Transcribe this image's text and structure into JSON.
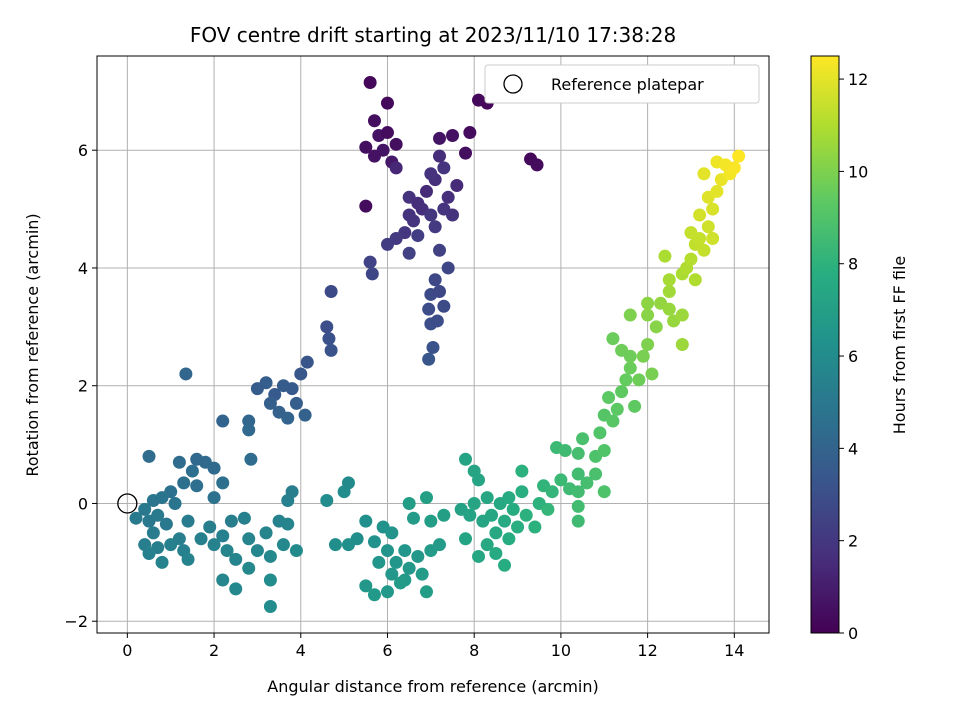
{
  "chart_data": {
    "type": "scatter",
    "title": "FOV centre drift starting at 2023/11/10 17:38:28",
    "xlabel": "Angular distance from reference (arcmin)",
    "ylabel": "Rotation from reference (arcmin)",
    "xlim": [
      -0.7,
      14.8
    ],
    "ylim": [
      -2.2,
      7.6
    ],
    "xticks": [
      0,
      2,
      4,
      6,
      8,
      10,
      12,
      14
    ],
    "yticks": [
      -2,
      0,
      2,
      4,
      6
    ],
    "grid": true,
    "legend": {
      "placement": "top-right",
      "entries": [
        "Reference platepar"
      ]
    },
    "reference_point": {
      "x": 0,
      "y": 0,
      "label": "Reference platepar"
    },
    "colorbar": {
      "label": "Hours from first FF file",
      "range": [
        0,
        12.5
      ],
      "ticks": [
        0,
        2,
        4,
        6,
        8,
        10,
        12
      ],
      "colormap": "viridis"
    },
    "points": [
      {
        "x": 5.6,
        "y": 7.15,
        "t": 0.2
      },
      {
        "x": 6.0,
        "y": 6.8,
        "t": 0.3
      },
      {
        "x": 5.7,
        "y": 6.5,
        "t": 0.5
      },
      {
        "x": 5.8,
        "y": 6.25,
        "t": 0.6
      },
      {
        "x": 6.0,
        "y": 6.3,
        "t": 0.4
      },
      {
        "x": 5.5,
        "y": 6.05,
        "t": 0.5
      },
      {
        "x": 5.9,
        "y": 6.0,
        "t": 0.7
      },
      {
        "x": 6.1,
        "y": 5.8,
        "t": 0.8
      },
      {
        "x": 5.7,
        "y": 5.9,
        "t": 0.6
      },
      {
        "x": 6.2,
        "y": 6.1,
        "t": 0.5
      },
      {
        "x": 8.1,
        "y": 6.85,
        "t": 0.3
      },
      {
        "x": 8.3,
        "y": 6.8,
        "t": 0.2
      },
      {
        "x": 9.3,
        "y": 5.85,
        "t": 0.3
      },
      {
        "x": 9.45,
        "y": 5.75,
        "t": 0.4
      },
      {
        "x": 7.9,
        "y": 6.3,
        "t": 0.4
      },
      {
        "x": 7.5,
        "y": 6.25,
        "t": 0.6
      },
      {
        "x": 7.2,
        "y": 6.2,
        "t": 0.7
      },
      {
        "x": 7.8,
        "y": 5.95,
        "t": 0.5
      },
      {
        "x": 5.5,
        "y": 5.05,
        "t": 0.4
      },
      {
        "x": 6.2,
        "y": 5.7,
        "t": 1.4
      },
      {
        "x": 6.5,
        "y": 5.2,
        "t": 1.8
      },
      {
        "x": 6.7,
        "y": 5.1,
        "t": 1.6
      },
      {
        "x": 6.9,
        "y": 5.3,
        "t": 1.5
      },
      {
        "x": 7.1,
        "y": 5.5,
        "t": 1.7
      },
      {
        "x": 7.3,
        "y": 5.7,
        "t": 1.9
      },
      {
        "x": 7.2,
        "y": 5.9,
        "t": 1.6
      },
      {
        "x": 7.0,
        "y": 5.6,
        "t": 1.8
      },
      {
        "x": 6.8,
        "y": 5.0,
        "t": 1.7
      },
      {
        "x": 6.6,
        "y": 4.8,
        "t": 1.9
      },
      {
        "x": 6.4,
        "y": 4.6,
        "t": 2.0
      },
      {
        "x": 6.2,
        "y": 4.5,
        "t": 2.1
      },
      {
        "x": 6.0,
        "y": 4.4,
        "t": 2.2
      },
      {
        "x": 6.5,
        "y": 4.9,
        "t": 1.8
      },
      {
        "x": 7.4,
        "y": 5.2,
        "t": 1.7
      },
      {
        "x": 7.6,
        "y": 5.4,
        "t": 1.5
      },
      {
        "x": 7.3,
        "y": 5.0,
        "t": 1.9
      },
      {
        "x": 7.0,
        "y": 4.9,
        "t": 2.0
      },
      {
        "x": 7.1,
        "y": 4.7,
        "t": 2.1
      },
      {
        "x": 7.5,
        "y": 4.9,
        "t": 1.8
      },
      {
        "x": 6.7,
        "y": 4.55,
        "t": 2.3
      },
      {
        "x": 5.6,
        "y": 4.1,
        "t": 2.5
      },
      {
        "x": 5.65,
        "y": 3.9,
        "t": 2.6
      },
      {
        "x": 7.2,
        "y": 4.3,
        "t": 2.4
      },
      {
        "x": 7.4,
        "y": 4.0,
        "t": 2.6
      },
      {
        "x": 7.1,
        "y": 3.8,
        "t": 2.7
      },
      {
        "x": 7.0,
        "y": 3.55,
        "t": 2.8
      },
      {
        "x": 6.95,
        "y": 3.3,
        "t": 2.9
      },
      {
        "x": 7.3,
        "y": 3.35,
        "t": 2.8
      },
      {
        "x": 7.0,
        "y": 3.05,
        "t": 3.0
      },
      {
        "x": 7.15,
        "y": 3.1,
        "t": 2.9
      },
      {
        "x": 7.05,
        "y": 2.65,
        "t": 3.2
      },
      {
        "x": 6.95,
        "y": 2.45,
        "t": 3.3
      },
      {
        "x": 6.5,
        "y": 4.25,
        "t": 2.4
      },
      {
        "x": 7.2,
        "y": 3.6,
        "t": 2.7
      },
      {
        "x": 4.7,
        "y": 3.6,
        "t": 2.8
      },
      {
        "x": 4.6,
        "y": 3.0,
        "t": 3.0
      },
      {
        "x": 4.65,
        "y": 2.8,
        "t": 3.1
      },
      {
        "x": 4.7,
        "y": 2.6,
        "t": 3.2
      },
      {
        "x": 4.15,
        "y": 2.4,
        "t": 3.3
      },
      {
        "x": 4.0,
        "y": 2.2,
        "t": 3.4
      },
      {
        "x": 3.8,
        "y": 1.95,
        "t": 3.5
      },
      {
        "x": 3.6,
        "y": 2.0,
        "t": 3.6
      },
      {
        "x": 3.4,
        "y": 1.85,
        "t": 3.5
      },
      {
        "x": 3.2,
        "y": 2.05,
        "t": 3.7
      },
      {
        "x": 3.0,
        "y": 1.95,
        "t": 3.6
      },
      {
        "x": 3.3,
        "y": 1.7,
        "t": 3.8
      },
      {
        "x": 3.5,
        "y": 1.55,
        "t": 3.9
      },
      {
        "x": 3.9,
        "y": 1.7,
        "t": 3.7
      },
      {
        "x": 4.1,
        "y": 1.5,
        "t": 3.9
      },
      {
        "x": 3.7,
        "y": 1.45,
        "t": 4.0
      },
      {
        "x": 2.8,
        "y": 1.4,
        "t": 4.1
      },
      {
        "x": 2.8,
        "y": 1.25,
        "t": 4.2
      },
      {
        "x": 2.2,
        "y": 1.4,
        "t": 4.0
      },
      {
        "x": 1.35,
        "y": 2.2,
        "t": 4.1
      },
      {
        "x": 2.85,
        "y": 0.75,
        "t": 4.4
      },
      {
        "x": 1.8,
        "y": 0.7,
        "t": 4.3
      },
      {
        "x": 1.6,
        "y": 0.75,
        "t": 4.2
      },
      {
        "x": 1.2,
        "y": 0.7,
        "t": 4.4
      },
      {
        "x": 1.5,
        "y": 0.55,
        "t": 4.5
      },
      {
        "x": 2.0,
        "y": 0.6,
        "t": 4.3
      },
      {
        "x": 1.3,
        "y": 0.35,
        "t": 4.6
      },
      {
        "x": 1.6,
        "y": 0.3,
        "t": 4.5
      },
      {
        "x": 1.0,
        "y": 0.2,
        "t": 4.7
      },
      {
        "x": 0.5,
        "y": 0.8,
        "t": 4.4
      },
      {
        "x": 2.2,
        "y": 0.35,
        "t": 4.6
      },
      {
        "x": 2.0,
        "y": 0.1,
        "t": 4.7
      },
      {
        "x": 1.1,
        "y": 0.0,
        "t": 4.8
      },
      {
        "x": 0.6,
        "y": 0.05,
        "t": 4.9
      },
      {
        "x": 0.8,
        "y": 0.1,
        "t": 4.8
      },
      {
        "x": 0.4,
        "y": -0.1,
        "t": 5.0
      },
      {
        "x": 0.2,
        "y": -0.25,
        "t": 5.1
      },
      {
        "x": 0.5,
        "y": -0.3,
        "t": 5.0
      },
      {
        "x": 0.7,
        "y": -0.2,
        "t": 5.1
      },
      {
        "x": 0.9,
        "y": -0.35,
        "t": 5.0
      },
      {
        "x": 0.6,
        "y": -0.5,
        "t": 5.2
      },
      {
        "x": 0.4,
        "y": -0.7,
        "t": 5.3
      },
      {
        "x": 0.7,
        "y": -0.75,
        "t": 5.3
      },
      {
        "x": 0.5,
        "y": -0.85,
        "t": 5.4
      },
      {
        "x": 0.8,
        "y": -1.0,
        "t": 5.5
      },
      {
        "x": 1.0,
        "y": -0.7,
        "t": 5.4
      },
      {
        "x": 1.2,
        "y": -0.6,
        "t": 5.3
      },
      {
        "x": 1.3,
        "y": -0.8,
        "t": 5.4
      },
      {
        "x": 1.4,
        "y": -0.95,
        "t": 5.5
      },
      {
        "x": 1.4,
        "y": -0.3,
        "t": 5.2
      },
      {
        "x": 1.7,
        "y": -0.6,
        "t": 5.4
      },
      {
        "x": 1.9,
        "y": -0.4,
        "t": 5.3
      },
      {
        "x": 2.0,
        "y": -0.7,
        "t": 5.5
      },
      {
        "x": 2.2,
        "y": -0.55,
        "t": 5.4
      },
      {
        "x": 2.4,
        "y": -0.3,
        "t": 5.3
      },
      {
        "x": 2.3,
        "y": -0.8,
        "t": 5.6
      },
      {
        "x": 2.5,
        "y": -0.95,
        "t": 5.6
      },
      {
        "x": 2.7,
        "y": -0.25,
        "t": 5.4
      },
      {
        "x": 2.8,
        "y": -0.6,
        "t": 5.6
      },
      {
        "x": 3.0,
        "y": -0.8,
        "t": 5.7
      },
      {
        "x": 2.2,
        "y": -1.3,
        "t": 5.7
      },
      {
        "x": 2.5,
        "y": -1.45,
        "t": 5.8
      },
      {
        "x": 2.8,
        "y": -1.1,
        "t": 5.8
      },
      {
        "x": 3.3,
        "y": -0.9,
        "t": 5.8
      },
      {
        "x": 3.2,
        "y": -0.5,
        "t": 5.6
      },
      {
        "x": 3.5,
        "y": -0.3,
        "t": 5.5
      },
      {
        "x": 3.7,
        "y": -0.35,
        "t": 5.6
      },
      {
        "x": 3.6,
        "y": -0.7,
        "t": 5.8
      },
      {
        "x": 3.9,
        "y": -0.8,
        "t": 5.9
      },
      {
        "x": 3.7,
        "y": 0.05,
        "t": 5.4
      },
      {
        "x": 3.8,
        "y": 0.2,
        "t": 5.3
      },
      {
        "x": 3.3,
        "y": -1.3,
        "t": 6.0
      },
      {
        "x": 3.3,
        "y": -1.75,
        "t": 6.0
      },
      {
        "x": 4.6,
        "y": 0.05,
        "t": 6.0
      },
      {
        "x": 5.0,
        "y": 0.2,
        "t": 6.0
      },
      {
        "x": 5.1,
        "y": 0.35,
        "t": 5.9
      },
      {
        "x": 4.8,
        "y": -0.7,
        "t": 6.1
      },
      {
        "x": 5.1,
        "y": -0.7,
        "t": 6.2
      },
      {
        "x": 5.3,
        "y": -0.6,
        "t": 6.1
      },
      {
        "x": 5.5,
        "y": -0.3,
        "t": 6.2
      },
      {
        "x": 5.7,
        "y": -0.65,
        "t": 6.3
      },
      {
        "x": 5.9,
        "y": -0.4,
        "t": 6.3
      },
      {
        "x": 6.1,
        "y": -0.5,
        "t": 6.4
      },
      {
        "x": 6.0,
        "y": -0.8,
        "t": 6.4
      },
      {
        "x": 5.8,
        "y": -1.0,
        "t": 6.5
      },
      {
        "x": 6.2,
        "y": -1.0,
        "t": 6.5
      },
      {
        "x": 6.4,
        "y": -0.8,
        "t": 6.5
      },
      {
        "x": 6.5,
        "y": -1.1,
        "t": 6.6
      },
      {
        "x": 6.7,
        "y": -0.9,
        "t": 6.6
      },
      {
        "x": 6.4,
        "y": -1.3,
        "t": 6.7
      },
      {
        "x": 6.1,
        "y": -1.2,
        "t": 6.6
      },
      {
        "x": 5.5,
        "y": -1.4,
        "t": 6.6
      },
      {
        "x": 5.7,
        "y": -1.55,
        "t": 6.7
      },
      {
        "x": 6.0,
        "y": -1.5,
        "t": 6.7
      },
      {
        "x": 6.3,
        "y": -1.35,
        "t": 6.8
      },
      {
        "x": 6.8,
        "y": -1.2,
        "t": 6.8
      },
      {
        "x": 6.9,
        "y": -1.5,
        "t": 6.9
      },
      {
        "x": 7.0,
        "y": -0.8,
        "t": 6.8
      },
      {
        "x": 7.2,
        "y": -0.7,
        "t": 6.8
      },
      {
        "x": 7.0,
        "y": -0.3,
        "t": 6.9
      },
      {
        "x": 7.3,
        "y": -0.2,
        "t": 7.0
      },
      {
        "x": 6.6,
        "y": -0.25,
        "t": 6.8
      },
      {
        "x": 6.5,
        "y": 0.0,
        "t": 6.9
      },
      {
        "x": 6.9,
        "y": 0.1,
        "t": 7.0
      },
      {
        "x": 7.7,
        "y": -0.1,
        "t": 7.1
      },
      {
        "x": 7.8,
        "y": -0.6,
        "t": 7.2
      },
      {
        "x": 7.9,
        "y": -0.2,
        "t": 7.2
      },
      {
        "x": 8.0,
        "y": 0.0,
        "t": 7.3
      },
      {
        "x": 8.2,
        "y": -0.3,
        "t": 7.3
      },
      {
        "x": 8.3,
        "y": 0.1,
        "t": 7.4
      },
      {
        "x": 8.4,
        "y": -0.2,
        "t": 7.4
      },
      {
        "x": 8.5,
        "y": -0.5,
        "t": 7.5
      },
      {
        "x": 8.6,
        "y": 0.0,
        "t": 7.5
      },
      {
        "x": 8.7,
        "y": -0.3,
        "t": 7.6
      },
      {
        "x": 8.8,
        "y": 0.1,
        "t": 7.6
      },
      {
        "x": 8.9,
        "y": -0.1,
        "t": 7.7
      },
      {
        "x": 8.3,
        "y": -0.7,
        "t": 7.5
      },
      {
        "x": 8.1,
        "y": -0.9,
        "t": 7.4
      },
      {
        "x": 8.5,
        "y": -0.85,
        "t": 7.6
      },
      {
        "x": 8.8,
        "y": -0.6,
        "t": 7.7
      },
      {
        "x": 8.7,
        "y": -1.05,
        "t": 7.7
      },
      {
        "x": 9.0,
        "y": -0.4,
        "t": 7.8
      },
      {
        "x": 9.2,
        "y": -0.2,
        "t": 7.9
      },
      {
        "x": 9.4,
        "y": -0.4,
        "t": 7.9
      },
      {
        "x": 9.1,
        "y": 0.2,
        "t": 7.8
      },
      {
        "x": 9.5,
        "y": 0.0,
        "t": 8.0
      },
      {
        "x": 9.6,
        "y": 0.3,
        "t": 8.1
      },
      {
        "x": 9.8,
        "y": 0.2,
        "t": 8.2
      },
      {
        "x": 8.0,
        "y": 0.55,
        "t": 7.3
      },
      {
        "x": 7.8,
        "y": 0.75,
        "t": 7.2
      },
      {
        "x": 8.1,
        "y": 0.4,
        "t": 7.3
      },
      {
        "x": 9.1,
        "y": 0.55,
        "t": 7.9
      },
      {
        "x": 9.7,
        "y": -0.1,
        "t": 8.2
      },
      {
        "x": 10.0,
        "y": 0.4,
        "t": 8.4
      },
      {
        "x": 10.2,
        "y": 0.25,
        "t": 8.5
      },
      {
        "x": 10.4,
        "y": 0.2,
        "t": 8.6
      },
      {
        "x": 10.4,
        "y": 0.5,
        "t": 8.6
      },
      {
        "x": 10.6,
        "y": 0.35,
        "t": 8.7
      },
      {
        "x": 10.8,
        "y": 0.5,
        "t": 8.8
      },
      {
        "x": 10.4,
        "y": -0.05,
        "t": 8.6
      },
      {
        "x": 10.4,
        "y": -0.3,
        "t": 8.5
      },
      {
        "x": 11.0,
        "y": 0.2,
        "t": 8.9
      },
      {
        "x": 9.9,
        "y": 0.95,
        "t": 8.4
      },
      {
        "x": 10.1,
        "y": 0.9,
        "t": 8.5
      },
      {
        "x": 10.4,
        "y": 0.85,
        "t": 8.7
      },
      {
        "x": 10.5,
        "y": 1.1,
        "t": 8.8
      },
      {
        "x": 10.8,
        "y": 0.8,
        "t": 8.9
      },
      {
        "x": 11.0,
        "y": 0.9,
        "t": 9.0
      },
      {
        "x": 10.9,
        "y": 1.2,
        "t": 9.0
      },
      {
        "x": 11.0,
        "y": 1.5,
        "t": 9.1
      },
      {
        "x": 11.2,
        "y": 1.4,
        "t": 9.2
      },
      {
        "x": 11.3,
        "y": 1.6,
        "t": 9.3
      },
      {
        "x": 11.1,
        "y": 1.8,
        "t": 9.3
      },
      {
        "x": 11.4,
        "y": 1.9,
        "t": 9.4
      },
      {
        "x": 11.5,
        "y": 2.1,
        "t": 9.5
      },
      {
        "x": 11.6,
        "y": 2.3,
        "t": 9.6
      },
      {
        "x": 11.8,
        "y": 2.1,
        "t": 9.7
      },
      {
        "x": 11.4,
        "y": 2.6,
        "t": 9.7
      },
      {
        "x": 11.2,
        "y": 2.8,
        "t": 9.6
      },
      {
        "x": 11.6,
        "y": 2.5,
        "t": 9.7
      },
      {
        "x": 11.7,
        "y": 1.65,
        "t": 9.4
      },
      {
        "x": 11.9,
        "y": 2.5,
        "t": 9.9
      },
      {
        "x": 12.0,
        "y": 2.7,
        "t": 10.0
      },
      {
        "x": 12.1,
        "y": 2.2,
        "t": 9.9
      },
      {
        "x": 12.2,
        "y": 3.0,
        "t": 10.2
      },
      {
        "x": 12.0,
        "y": 3.2,
        "t": 10.2
      },
      {
        "x": 11.6,
        "y": 3.2,
        "t": 10.0
      },
      {
        "x": 12.0,
        "y": 3.4,
        "t": 10.3
      },
      {
        "x": 12.3,
        "y": 3.4,
        "t": 10.4
      },
      {
        "x": 12.5,
        "y": 3.3,
        "t": 10.5
      },
      {
        "x": 12.6,
        "y": 3.1,
        "t": 10.5
      },
      {
        "x": 12.8,
        "y": 3.2,
        "t": 10.6
      },
      {
        "x": 12.8,
        "y": 2.7,
        "t": 10.6
      },
      {
        "x": 12.5,
        "y": 3.6,
        "t": 10.7
      },
      {
        "x": 12.5,
        "y": 3.8,
        "t": 10.8
      },
      {
        "x": 12.8,
        "y": 3.9,
        "t": 10.9
      },
      {
        "x": 12.9,
        "y": 4.0,
        "t": 11.0
      },
      {
        "x": 13.0,
        "y": 4.15,
        "t": 11.1
      },
      {
        "x": 13.1,
        "y": 3.8,
        "t": 11.0
      },
      {
        "x": 12.4,
        "y": 4.2,
        "t": 10.9
      },
      {
        "x": 13.1,
        "y": 4.4,
        "t": 11.3
      },
      {
        "x": 13.2,
        "y": 4.5,
        "t": 11.4
      },
      {
        "x": 13.3,
        "y": 4.3,
        "t": 11.4
      },
      {
        "x": 13.0,
        "y": 4.6,
        "t": 11.4
      },
      {
        "x": 13.4,
        "y": 4.7,
        "t": 11.6
      },
      {
        "x": 13.5,
        "y": 4.5,
        "t": 11.6
      },
      {
        "x": 13.2,
        "y": 4.9,
        "t": 11.7
      },
      {
        "x": 13.5,
        "y": 5.0,
        "t": 11.8
      },
      {
        "x": 13.4,
        "y": 5.2,
        "t": 11.9
      },
      {
        "x": 13.6,
        "y": 5.3,
        "t": 12.0
      },
      {
        "x": 13.3,
        "y": 5.6,
        "t": 12.0
      },
      {
        "x": 13.7,
        "y": 5.5,
        "t": 12.1
      },
      {
        "x": 13.6,
        "y": 5.8,
        "t": 12.2
      },
      {
        "x": 13.9,
        "y": 5.6,
        "t": 12.3
      },
      {
        "x": 13.8,
        "y": 5.75,
        "t": 12.3
      },
      {
        "x": 14.1,
        "y": 5.9,
        "t": 12.5
      },
      {
        "x": 14.0,
        "y": 5.7,
        "t": 12.4
      }
    ]
  }
}
